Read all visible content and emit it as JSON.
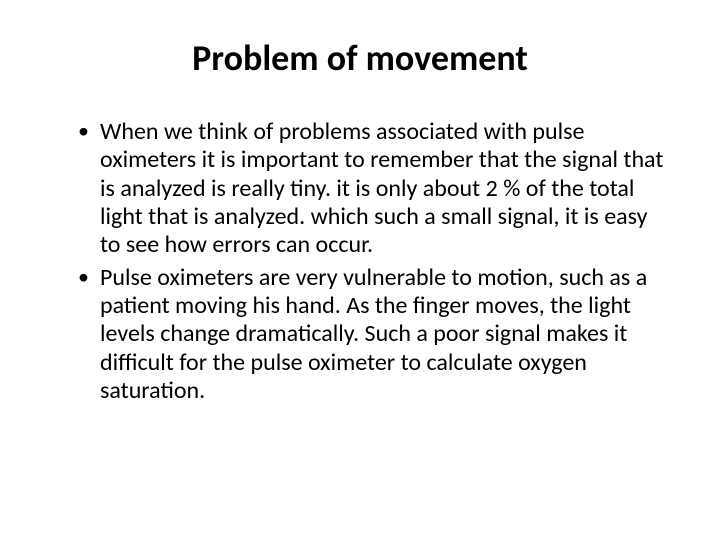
{
  "slide": {
    "title": "Problem of movement",
    "bullets": [
      "When we think of problems associated with pulse oximeters it is important to remember that the signal that is analyzed is really tiny. it is only about 2 % of the total light that is analyzed. which such a small signal, it is easy to see how errors can occur.",
      " Pulse oximeters are very vulnerable to motion, such as a patient moving his hand. As the finger moves, the light levels change dramatically. Such a poor signal makes it difficult for the pulse oximeter to calculate oxygen saturation."
    ]
  },
  "styling": {
    "background_color": "#ffffff",
    "text_color": "#000000",
    "title_fontsize": 36,
    "title_fontweight": 700,
    "body_fontsize": 24,
    "font_family": "Calibri",
    "line_height": 1.18
  }
}
